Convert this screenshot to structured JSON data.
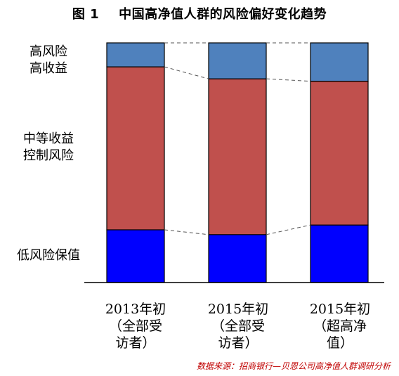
{
  "title": {
    "figure_no": "图 1",
    "text": "中国高净值人群的风险偏好变化趋势"
  },
  "colors": {
    "low_risk": "#0000ff",
    "mid_risk": "#c0504d",
    "high_risk": "#4f81bd"
  },
  "band_labels": {
    "high": [
      "高风险",
      "高收益"
    ],
    "mid": [
      "中等收益",
      "控制风险"
    ],
    "low": [
      "低风险保值"
    ]
  },
  "x_labels": [
    [
      "2013年初",
      "（全部受",
      "访者）"
    ],
    [
      "2015年初",
      "（全部受",
      "访者）"
    ],
    [
      "2015年初",
      "（超高净",
      "值）"
    ]
  ],
  "source": "数据来源：招商银行—贝恩公司高净值人群调研分析",
  "chart_data": {
    "type": "bar",
    "stacked": true,
    "percent": true,
    "categories": [
      "2013年初（全部受访者）",
      "2015年初（全部受访者）",
      "2015年初（超高净值）"
    ],
    "series": [
      {
        "name": "低风险保值",
        "values": [
          22,
          20,
          24
        ]
      },
      {
        "name": "中等收益控制风险",
        "values": [
          68,
          65,
          60
        ]
      },
      {
        "name": "高风险高收益",
        "values": [
          10,
          15,
          16
        ]
      }
    ],
    "ylim": [
      0,
      100
    ],
    "connector_lines": "dashed",
    "grid": false
  }
}
